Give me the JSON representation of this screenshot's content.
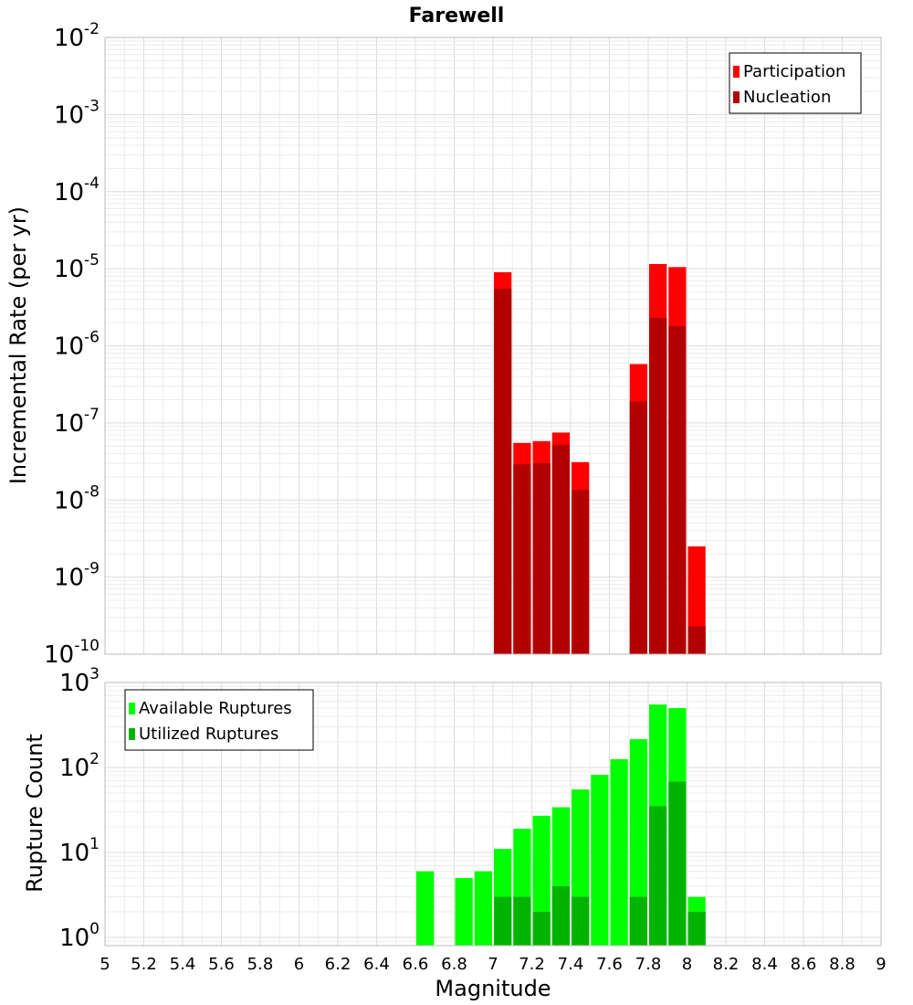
{
  "chart_data": [
    {
      "type": "bar",
      "title": "Farewell",
      "ylabel": "Incremental Rate (per yr)",
      "yscale": "log",
      "ylim": [
        1e-10,
        0.01
      ],
      "xlim": [
        5,
        9
      ],
      "legend_position": "top-right",
      "bar_width": 0.1,
      "y_tick_exponents": [
        "-10",
        "-9",
        "-8",
        "-7",
        "-6",
        "-5",
        "-4",
        "-3",
        "-2"
      ],
      "series": [
        {
          "name": "Participation",
          "color": "#ff0000",
          "x": [
            7.05,
            7.15,
            7.25,
            7.35,
            7.45,
            7.75,
            7.85,
            7.95,
            8.05
          ],
          "values": [
            9e-06,
            5.5e-08,
            5.8e-08,
            7.5e-08,
            3.1e-08,
            5.8e-07,
            1.15e-05,
            1.05e-05,
            2.5e-09
          ]
        },
        {
          "name": "Nucleation",
          "color": "#b30000",
          "x": [
            7.05,
            7.15,
            7.25,
            7.35,
            7.45,
            7.75,
            7.85,
            7.95,
            8.05
          ],
          "values": [
            5.5e-06,
            2.9e-08,
            3e-08,
            5.2e-08,
            1.35e-08,
            1.9e-07,
            2.3e-06,
            1.8e-06,
            2.3e-10
          ]
        }
      ]
    },
    {
      "type": "bar",
      "xlabel": "Magnitude",
      "ylabel": "Rupture Count",
      "yscale": "log",
      "ylim": [
        0.8,
        1000
      ],
      "xlim": [
        5,
        9
      ],
      "legend_position": "top-left",
      "bar_width": 0.1,
      "y_tick_exponents": [
        "0",
        "1",
        "2",
        "3"
      ],
      "y_tick_values": [
        1,
        10,
        100,
        1000
      ],
      "x_ticks": [
        "5",
        "5.2",
        "5.4",
        "5.6",
        "5.8",
        "6",
        "6.2",
        "6.4",
        "6.6",
        "6.8",
        "7",
        "7.2",
        "7.4",
        "7.6",
        "7.8",
        "8",
        "8.2",
        "8.4",
        "8.6",
        "8.8",
        "9"
      ],
      "series": [
        {
          "name": "Available Ruptures",
          "color": "#00ff00",
          "x": [
            6.65,
            6.85,
            6.95,
            7.05,
            7.15,
            7.25,
            7.35,
            7.45,
            7.55,
            7.65,
            7.75,
            7.85,
            7.95,
            8.05
          ],
          "values": [
            6,
            5,
            6,
            11,
            19,
            27,
            34,
            55,
            82,
            125,
            215,
            550,
            500,
            3
          ]
        },
        {
          "name": "Utilized Ruptures",
          "color": "#00b300",
          "x": [
            7.05,
            7.15,
            7.25,
            7.35,
            7.45,
            7.75,
            7.85,
            7.95,
            8.05
          ],
          "values": [
            3,
            3,
            2,
            4,
            3,
            3,
            35,
            68,
            2
          ]
        }
      ]
    }
  ]
}
